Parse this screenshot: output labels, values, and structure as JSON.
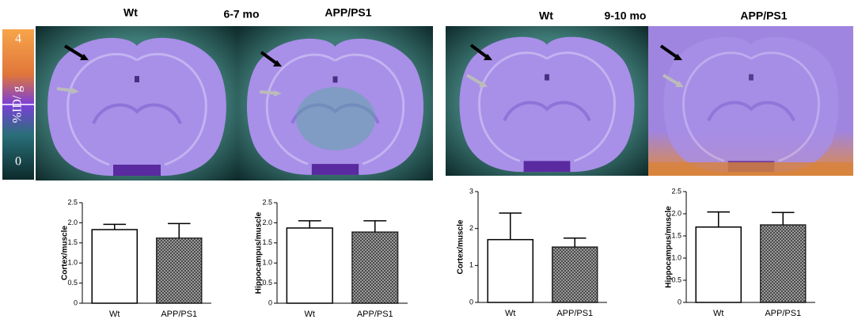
{
  "images": {
    "groups": [
      {
        "left": "Wt",
        "age": "6-7 mo",
        "right": "APP/PS1"
      },
      {
        "left": "Wt",
        "age": "9-10 mo",
        "right": "APP/PS1"
      }
    ],
    "colorbar": {
      "max": "4",
      "label": "%ID/ g",
      "min": "0"
    }
  },
  "chart_data": [
    {
      "type": "bar",
      "ylabel": "Cortex/muscle",
      "categories": [
        "Wt",
        "APP/PS1"
      ],
      "values": [
        1.83,
        1.62
      ],
      "errors": [
        0.13,
        0.36
      ],
      "colors": [
        "#ffffff",
        "#6a6a6a"
      ],
      "patterns": [
        "none",
        "crosshatch"
      ],
      "ylim": [
        0,
        2.5
      ],
      "yticks": [
        0,
        0.5,
        {
          "value": 1,
          "label": "1.0"
        },
        1.5,
        {
          "value": 2,
          "label": "2.0"
        },
        2.5
      ]
    },
    {
      "type": "bar",
      "ylabel": "Hippocampus/muscle",
      "categories": [
        "Wt",
        "APP/PS1"
      ],
      "values": [
        1.87,
        1.77
      ],
      "errors": [
        0.18,
        0.28
      ],
      "colors": [
        "#ffffff",
        "#6a6a6a"
      ],
      "patterns": [
        "none",
        "crosshatch"
      ],
      "ylim": [
        0,
        2.5
      ],
      "yticks": [
        0,
        0.5,
        {
          "value": 1,
          "label": "1.0"
        },
        1.5,
        {
          "value": 2,
          "label": "2.0"
        },
        2.5
      ]
    },
    {
      "type": "bar",
      "ylabel": "Cortex/muscle",
      "categories": [
        "Wt",
        "APP/PS1"
      ],
      "values": [
        1.7,
        1.5
      ],
      "errors": [
        0.72,
        0.24
      ],
      "colors": [
        "#ffffff",
        "#6a6a6a"
      ],
      "patterns": [
        "none",
        "crosshatch"
      ],
      "ylim": [
        0,
        3
      ],
      "yticks": [
        0,
        1,
        2,
        3
      ]
    },
    {
      "type": "bar",
      "ylabel": "Hippocampus/muscle",
      "categories": [
        "Wt",
        "APP/PS1"
      ],
      "values": [
        1.7,
        1.75
      ],
      "errors": [
        0.34,
        0.28
      ],
      "colors": [
        "#ffffff",
        "#6a6a6a"
      ],
      "patterns": [
        "none",
        "crosshatch"
      ],
      "ylim": [
        0,
        2.5
      ],
      "yticks": [
        0,
        0.5,
        {
          "value": 1,
          "label": "1.0"
        },
        1.5,
        {
          "value": 2,
          "label": "2.0"
        },
        2.5
      ]
    }
  ]
}
